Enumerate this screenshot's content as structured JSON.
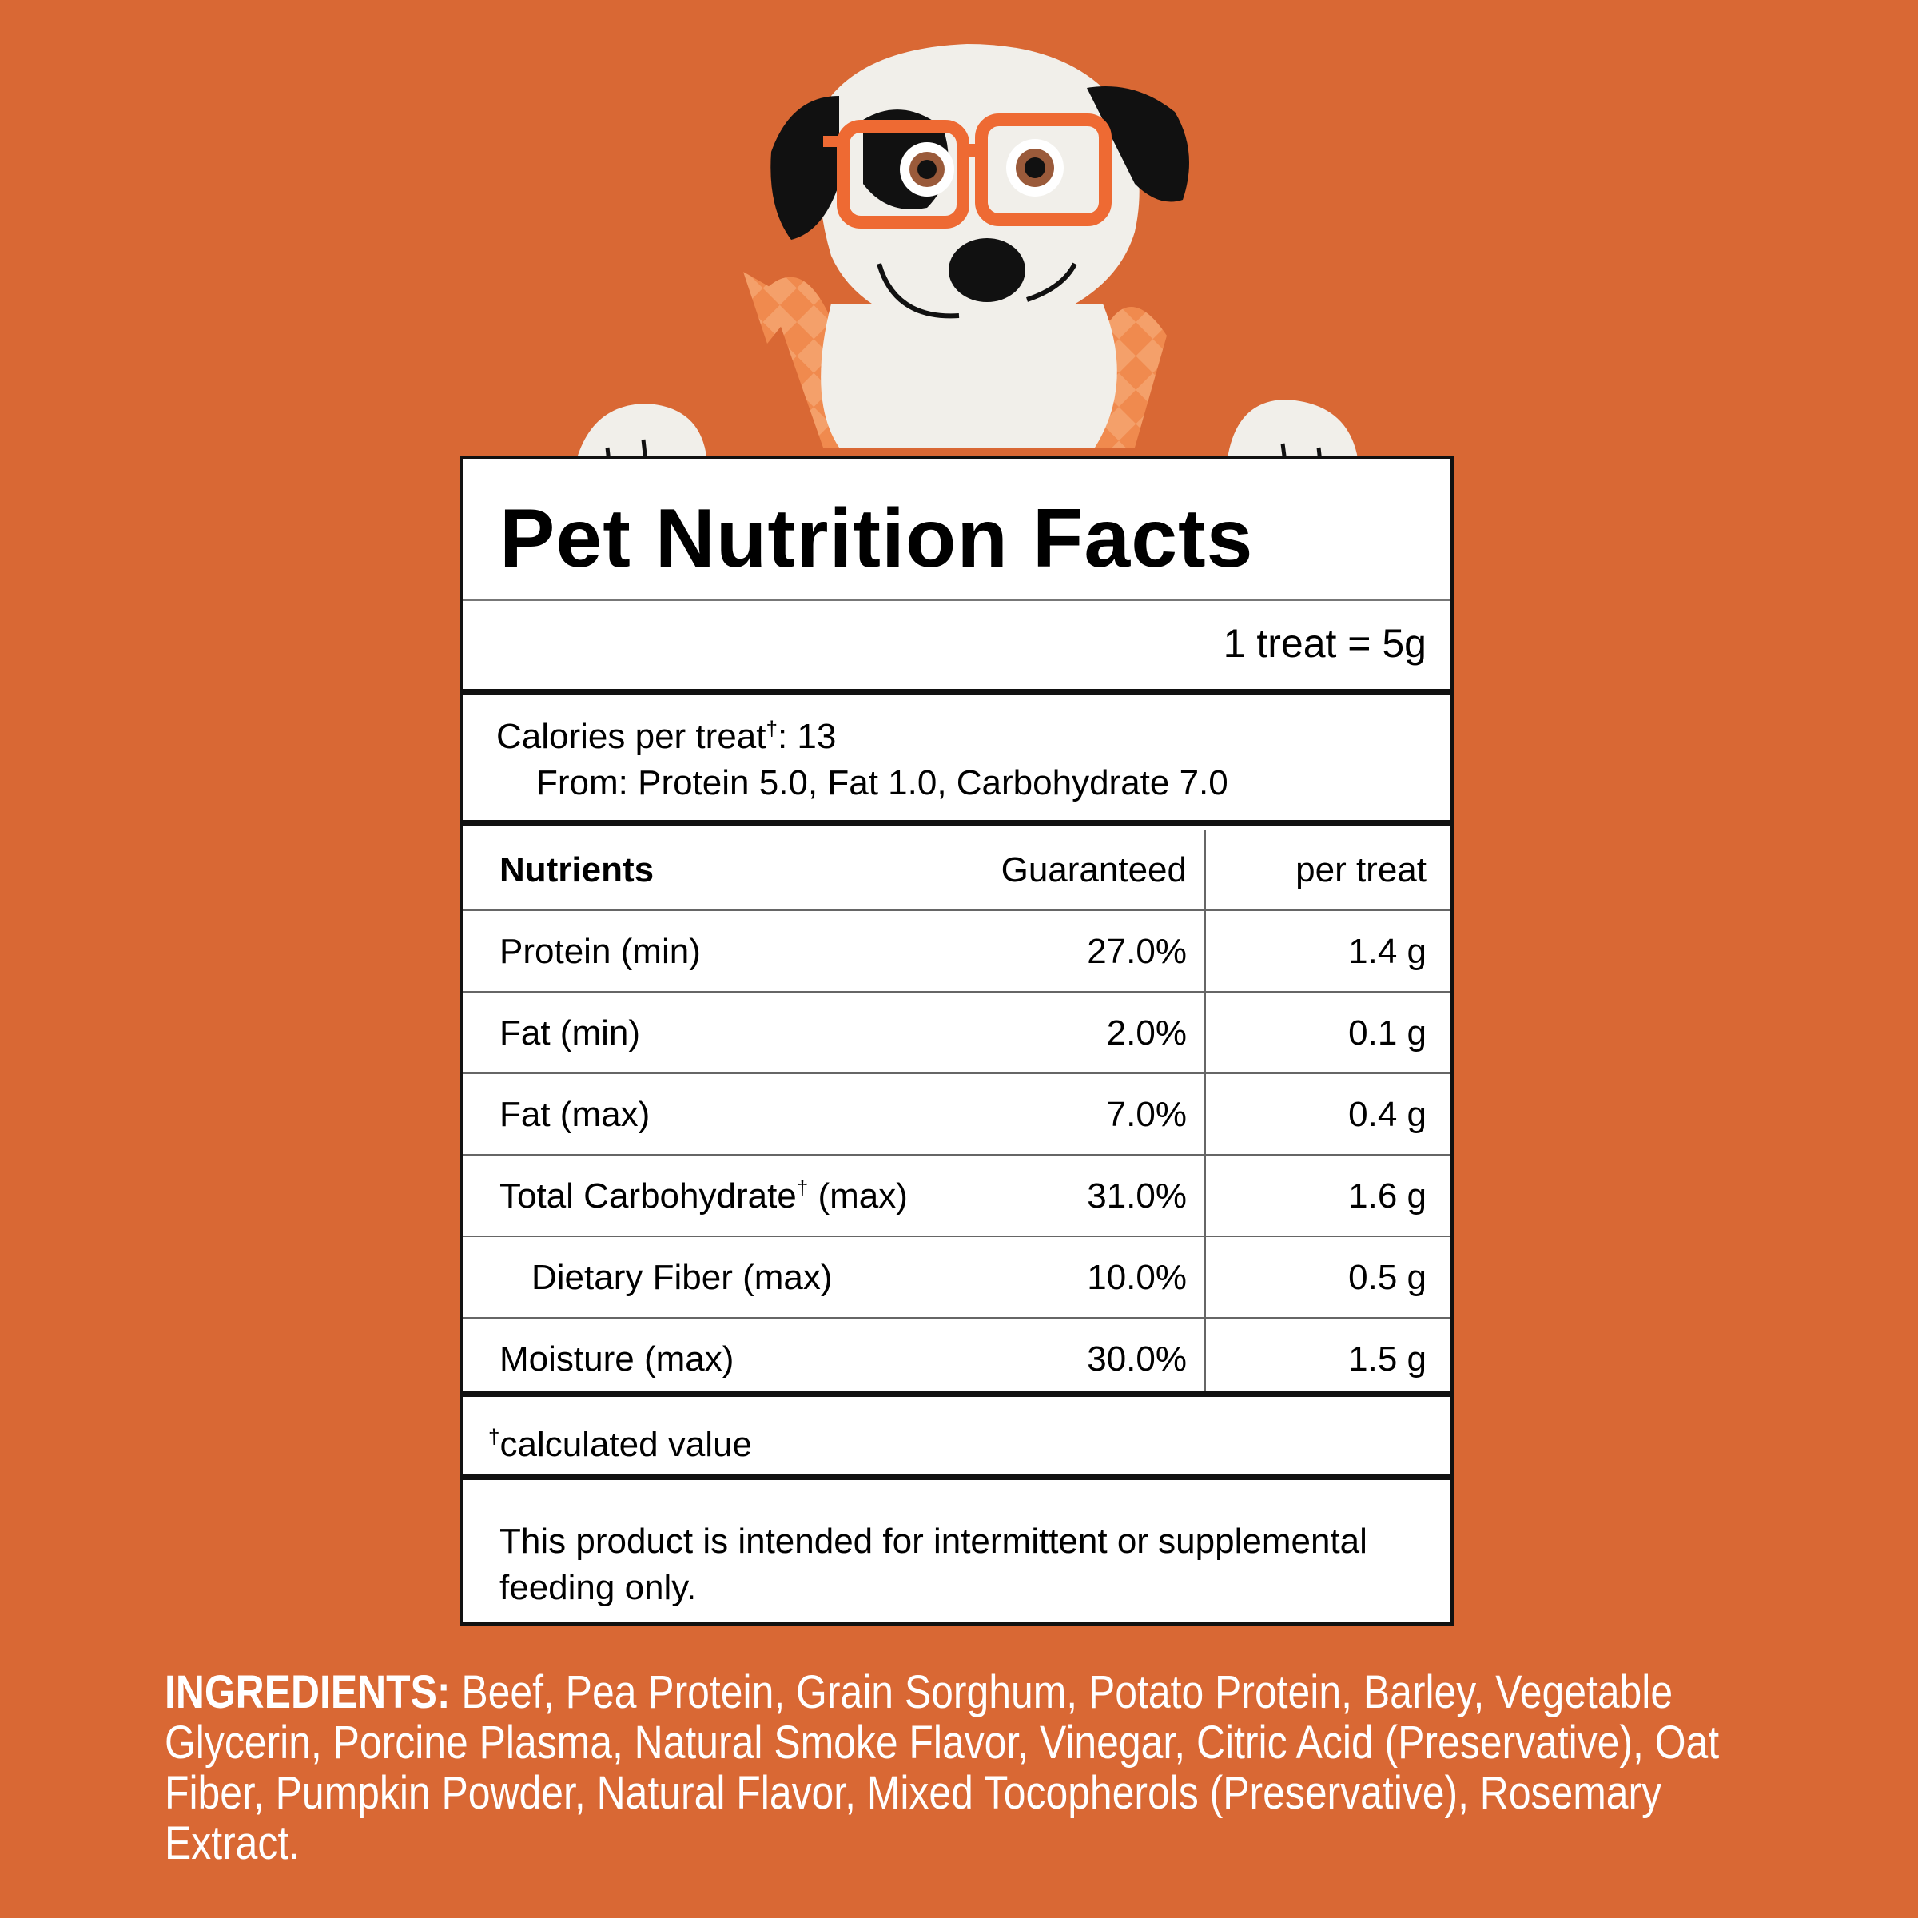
{
  "label": {
    "title": "Pet Nutrition Facts",
    "serving": "1 treat = 5g",
    "calories_label": "Calories per treat",
    "calories_dagger": "†",
    "calories_value": ": 13",
    "calories_from": "From: Protein 5.0, Fat 1.0, Carbohydrate 7.0"
  },
  "table": {
    "headers": {
      "nutrients": "Nutrients",
      "guaranteed": "Guaranteed",
      "per_treat": "per treat"
    },
    "rows": [
      {
        "name": "Protein (min)",
        "guaranteed": "27.0%",
        "per_treat": "1.4 g"
      },
      {
        "name": "Fat (min)",
        "guaranteed": "2.0%",
        "per_treat": "0.1 g"
      },
      {
        "name": "Fat (max)",
        "guaranteed": "7.0%",
        "per_treat": "0.4 g"
      },
      {
        "name": "Total Carbohydrate",
        "dagger": "†",
        "suffix": " (max)",
        "guaranteed": "31.0%",
        "per_treat": "1.6 g"
      },
      {
        "name": "Dietary Fiber (max)",
        "guaranteed": "10.0%",
        "per_treat": "0.5 g"
      },
      {
        "name": "Moisture (max)",
        "guaranteed": "30.0%",
        "per_treat": "1.5 g"
      }
    ]
  },
  "footnote": {
    "dagger": "†",
    "text": "calculated value"
  },
  "disclaimer": "This product is intended for intermittent or supplemental feeding only.",
  "ingredients": {
    "label": "INGREDIENTS:",
    "text": "Beef, Pea Protein, Grain Sorghum, Potato Protein, Barley, Vegetable Glycerin, Porcine Plasma, Natural Smoke Flavor, Vinegar, Citric Acid (Preservative), Oat Fiber, Pumpkin Powder, Natural Flavor, Mixed Tocopherols (Preservative), Rosemary Extract."
  },
  "colors": {
    "background": "#D96834",
    "panel": "#FFFFFF",
    "rule": "#111111",
    "text": "#000000",
    "ingredients_text": "#FFFFFF"
  },
  "illustration": {
    "icon": "dog-mascot-icon"
  }
}
